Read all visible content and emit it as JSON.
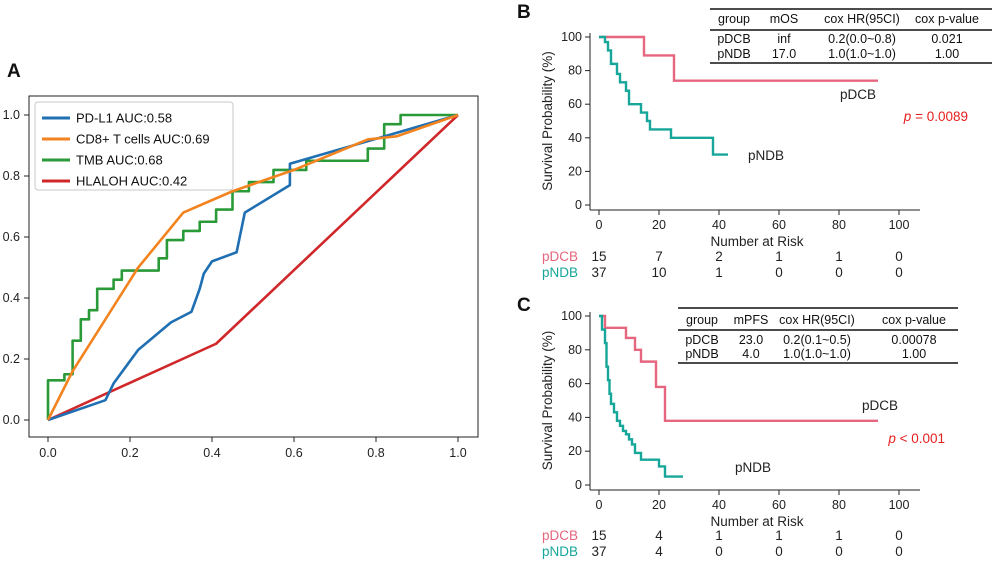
{
  "colors": {
    "pdl1": "#1f6fb2",
    "cd8": "#f2831f",
    "tmb": "#2a9a38",
    "hlaloh": "#d0282a",
    "pdcb": "#e5667e",
    "pndb": "#17a69a",
    "pvalue": "#e62020"
  },
  "chart_data": [
    {
      "id": "A",
      "panel_label": "A",
      "type": "line",
      "title": "",
      "xlabel": "",
      "ylabel": "",
      "xlim": [
        0,
        1
      ],
      "ylim": [
        0,
        1
      ],
      "x_ticks": [
        "0.0",
        "0.2",
        "0.4",
        "0.6",
        "0.8",
        "1.0"
      ],
      "y_ticks": [
        "0.0",
        "0.2",
        "0.4",
        "0.6",
        "0.8",
        "1.0"
      ],
      "legend_position": "upper-left",
      "series": [
        {
          "name": "PD-L1 AUC:0.58",
          "color_key": "pdl1",
          "points": [
            [
              0,
              0
            ],
            [
              0.14,
              0.065
            ],
            [
              0.16,
              0.12
            ],
            [
              0.22,
              0.23
            ],
            [
              0.3,
              0.32
            ],
            [
              0.35,
              0.355
            ],
            [
              0.37,
              0.43
            ],
            [
              0.38,
              0.48
            ],
            [
              0.4,
              0.52
            ],
            [
              0.46,
              0.55
            ],
            [
              0.48,
              0.68
            ],
            [
              0.59,
              0.77
            ],
            [
              0.59,
              0.84
            ],
            [
              1.0,
              1.0
            ]
          ]
        },
        {
          "name": "CD8+ T cells AUC:0.69",
          "color_key": "cd8",
          "points": [
            [
              0,
              0
            ],
            [
              0.06,
              0.16
            ],
            [
              0.22,
              0.5
            ],
            [
              0.33,
              0.68
            ],
            [
              0.45,
              0.75
            ],
            [
              0.6,
              0.82
            ],
            [
              0.78,
              0.92
            ],
            [
              0.85,
              0.93
            ],
            [
              1.0,
              1.0
            ]
          ]
        },
        {
          "name": "TMB AUC:0.68",
          "color_key": "tmb",
          "points": [
            [
              0,
              0
            ],
            [
              0,
              0.13
            ],
            [
              0.04,
              0.13
            ],
            [
              0.04,
              0.15
            ],
            [
              0.06,
              0.15
            ],
            [
              0.06,
              0.26
            ],
            [
              0.08,
              0.26
            ],
            [
              0.08,
              0.33
            ],
            [
              0.1,
              0.33
            ],
            [
              0.1,
              0.36
            ],
            [
              0.12,
              0.36
            ],
            [
              0.12,
              0.43
            ],
            [
              0.16,
              0.43
            ],
            [
              0.16,
              0.46
            ],
            [
              0.18,
              0.46
            ],
            [
              0.18,
              0.49
            ],
            [
              0.27,
              0.49
            ],
            [
              0.27,
              0.53
            ],
            [
              0.29,
              0.53
            ],
            [
              0.29,
              0.59
            ],
            [
              0.33,
              0.59
            ],
            [
              0.33,
              0.62
            ],
            [
              0.37,
              0.62
            ],
            [
              0.37,
              0.65
            ],
            [
              0.41,
              0.65
            ],
            [
              0.41,
              0.69
            ],
            [
              0.45,
              0.69
            ],
            [
              0.45,
              0.75
            ],
            [
              0.49,
              0.75
            ],
            [
              0.49,
              0.78
            ],
            [
              0.55,
              0.78
            ],
            [
              0.55,
              0.82
            ],
            [
              0.63,
              0.82
            ],
            [
              0.63,
              0.85
            ],
            [
              0.78,
              0.85
            ],
            [
              0.78,
              0.89
            ],
            [
              0.82,
              0.89
            ],
            [
              0.82,
              0.97
            ],
            [
              0.86,
              0.97
            ],
            [
              0.86,
              1.0
            ],
            [
              1.0,
              1.0
            ]
          ]
        },
        {
          "name": "HLALOH AUC:0.42",
          "color_key": "hlaloh",
          "points": [
            [
              0,
              0
            ],
            [
              0.41,
              0.25
            ],
            [
              1.0,
              1.0
            ]
          ]
        }
      ]
    },
    {
      "id": "B",
      "panel_label": "B",
      "type": "line",
      "title": "",
      "xlabel": "Number at Risk",
      "ylabel": "Survival Probability (%)",
      "xlim": [
        -3,
        107
      ],
      "ylim": [
        0,
        100
      ],
      "x_ticks": [
        "0",
        "20",
        "40",
        "60",
        "80",
        "100"
      ],
      "y_ticks": [
        "0",
        "20",
        "40",
        "60",
        "80",
        "100"
      ],
      "pvalue_prefix": "p",
      "pvalue_text": " = 0.0089",
      "series": [
        {
          "name": "pDCB",
          "label": "pDCB",
          "color_key": "pdcb",
          "points": [
            [
              0,
              100
            ],
            [
              15,
              100
            ],
            [
              15,
              89
            ],
            [
              25,
              89
            ],
            [
              25,
              74
            ],
            [
              93,
              74
            ]
          ]
        },
        {
          "name": "pNDB",
          "label": "pNDB",
          "color_key": "pndb",
          "points": [
            [
              0,
              100
            ],
            [
              2,
              100
            ],
            [
              2,
              97
            ],
            [
              3,
              97
            ],
            [
              3,
              92
            ],
            [
              4,
              92
            ],
            [
              4,
              84
            ],
            [
              6,
              84
            ],
            [
              6,
              78
            ],
            [
              7,
              78
            ],
            [
              7,
              73
            ],
            [
              9,
              73
            ],
            [
              9,
              68
            ],
            [
              10,
              68
            ],
            [
              10,
              60
            ],
            [
              14,
              60
            ],
            [
              14,
              55
            ],
            [
              16,
              55
            ],
            [
              16,
              50
            ],
            [
              17,
              50
            ],
            [
              17,
              45
            ],
            [
              24,
              45
            ],
            [
              24,
              40
            ],
            [
              38,
              40
            ],
            [
              38,
              30
            ],
            [
              43,
              30
            ]
          ]
        }
      ],
      "risk_table": {
        "title": "Number at Risk",
        "times": [
          0,
          20,
          40,
          60,
          80,
          100
        ],
        "rows": [
          {
            "label": "pDCB",
            "color_key": "pdcb",
            "values": [
              "15",
              "7",
              "2",
              "1",
              "1",
              "0"
            ]
          },
          {
            "label": "pNDB",
            "color_key": "pndb",
            "values": [
              "37",
              "10",
              "1",
              "0",
              "0",
              "0"
            ]
          }
        ]
      },
      "stats_table": {
        "headers": [
          "group",
          "mOS",
          "cox HR(95CI)",
          "cox p-value"
        ],
        "rows": [
          [
            "pDCB",
            "inf",
            "0.2(0.0~0.8)",
            "0.021"
          ],
          [
            "pNDB",
            "17.0",
            "1.0(1.0~1.0)",
            "1.00"
          ]
        ]
      }
    },
    {
      "id": "C",
      "panel_label": "C",
      "type": "line",
      "title": "",
      "xlabel": "Number at Risk",
      "ylabel": "Survival Probability (%)",
      "xlim": [
        -3,
        107
      ],
      "ylim": [
        0,
        100
      ],
      "x_ticks": [
        "0",
        "20",
        "40",
        "60",
        "80",
        "100"
      ],
      "y_ticks": [
        "0",
        "20",
        "40",
        "60",
        "80",
        "100"
      ],
      "pvalue_prefix": "p",
      "pvalue_text": " < 0.001",
      "series": [
        {
          "name": "pDCB",
          "label": "pDCB",
          "color_key": "pdcb",
          "points": [
            [
              0,
              100
            ],
            [
              2,
              100
            ],
            [
              2,
              93
            ],
            [
              9,
              93
            ],
            [
              9,
              87
            ],
            [
              12,
              87
            ],
            [
              12,
              80
            ],
            [
              14,
              80
            ],
            [
              14,
              73
            ],
            [
              19,
              73
            ],
            [
              19,
              58
            ],
            [
              22,
              58
            ],
            [
              22,
              38
            ],
            [
              93,
              38
            ]
          ]
        },
        {
          "name": "pNDB",
          "label": "pNDB",
          "color_key": "pndb",
          "points": [
            [
              0,
              100
            ],
            [
              1,
              100
            ],
            [
              1,
              92
            ],
            [
              2,
              92
            ],
            [
              2,
              84
            ],
            [
              2.5,
              84
            ],
            [
              2.5,
              70
            ],
            [
              3,
              70
            ],
            [
              3,
              62
            ],
            [
              3.5,
              62
            ],
            [
              3.5,
              54
            ],
            [
              4,
              54
            ],
            [
              4,
              48
            ],
            [
              5,
              48
            ],
            [
              5,
              43
            ],
            [
              6,
              43
            ],
            [
              6,
              38
            ],
            [
              7,
              38
            ],
            [
              7,
              35
            ],
            [
              8,
              35
            ],
            [
              8,
              32
            ],
            [
              9,
              32
            ],
            [
              9,
              30
            ],
            [
              10,
              30
            ],
            [
              10,
              27
            ],
            [
              11,
              27
            ],
            [
              11,
              24
            ],
            [
              12,
              24
            ],
            [
              12,
              19
            ],
            [
              14,
              19
            ],
            [
              14,
              15
            ],
            [
              20,
              15
            ],
            [
              20,
              11
            ],
            [
              22,
              11
            ],
            [
              22,
              5
            ],
            [
              28,
              5
            ]
          ]
        }
      ],
      "risk_table": {
        "title": "Number at Risk",
        "times": [
          0,
          20,
          40,
          60,
          80,
          100
        ],
        "rows": [
          {
            "label": "pDCB",
            "color_key": "pdcb",
            "values": [
              "15",
              "4",
              "1",
              "1",
              "1",
              "0"
            ]
          },
          {
            "label": "pNDB",
            "color_key": "pndb",
            "values": [
              "37",
              "4",
              "0",
              "0",
              "0",
              "0"
            ]
          }
        ]
      },
      "stats_table": {
        "headers": [
          "group",
          "mPFS",
          "cox HR(95CI)",
          "cox p-value"
        ],
        "rows": [
          [
            "pDCB",
            "23.0",
            "0.2(0.1~0.5)",
            "0.00078"
          ],
          [
            "pNDB",
            "4.0",
            "1.0(1.0~1.0)",
            "1.00"
          ]
        ]
      }
    }
  ]
}
